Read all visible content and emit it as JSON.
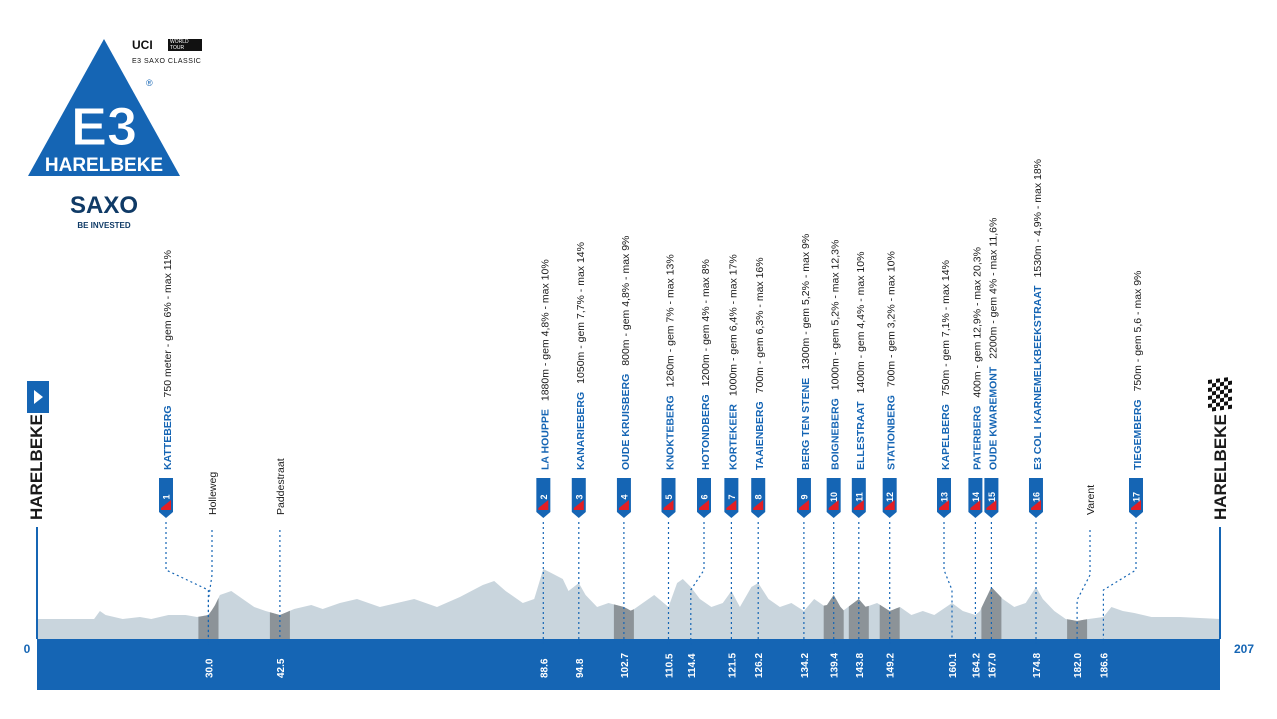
{
  "logo": {
    "mark": "E3",
    "registered": "®",
    "name": "HARELBEKE",
    "sponsor": "SAXO",
    "tagline": "BE INVESTED",
    "blue": "#1565b4"
  },
  "uci": {
    "brand": "UCI",
    "badge": "WORLD TOUR",
    "subtitle": "E3 SAXO CLASSIC"
  },
  "colors": {
    "primary": "#1565b4",
    "terrain": "#c9d5dd",
    "cobbles": "#8c9398",
    "text": "#1a1a1a"
  },
  "chart_data": {
    "type": "area",
    "x_unit": "km",
    "xlim": [
      0,
      207
    ],
    "start": {
      "km_label": "0",
      "town": "HARELBEKE",
      "icon": "start-flag-icon"
    },
    "finish": {
      "km_label": "207",
      "town": "HARELBEKE",
      "icon": "checkered-flag-icon"
    },
    "climbs": [
      {
        "num": "1",
        "name": "KATTEBERG",
        "details": "750 meter  -  gem 6%  -  max 11%",
        "km": 30.0,
        "km_label": "30.0"
      },
      {
        "num": "2",
        "name": "LA HOUPPE",
        "details": "1880m  -  gem 4,8%  -  max 10%",
        "km": 88.6,
        "km_label": "88.6"
      },
      {
        "num": "3",
        "name": "KANARIEBERG",
        "details": "1050m  -  gem 7,7%  -  max 14%",
        "km": 94.8,
        "km_label": "94.8"
      },
      {
        "num": "4",
        "name": "OUDE KRUISBERG",
        "details": "800m  -  gem 4,8%  -  max 9%",
        "km": 102.7,
        "km_label": "102.7"
      },
      {
        "num": "5",
        "name": "KNOKTEBERG",
        "details": "1260m  -  gem 7%  -  max 13%",
        "km": 110.5,
        "km_label": "110.5"
      },
      {
        "num": "6",
        "name": "HOTONDBERG",
        "details": "1200m  -  gem 4%  -  max 8%",
        "km": 114.4,
        "km_label": "114.4"
      },
      {
        "num": "7",
        "name": "KORTEKEER",
        "details": "1000m  -  gem 6,4%  -  max 17%",
        "km": 121.5,
        "km_label": "121.5"
      },
      {
        "num": "8",
        "name": "TAAIENBERG",
        "details": "700m  -  gem 6,3%  -  max 16%",
        "km": 126.2,
        "km_label": "126.2"
      },
      {
        "num": "9",
        "name": "BERG TEN STENE",
        "details": "1300m  -  gem 5,2%  -  max 9%",
        "km": 134.2,
        "km_label": "134.2"
      },
      {
        "num": "10",
        "name": "BOIGNEBERG",
        "details": "1000m  -  gem 5,2%  -  max 12,3%",
        "km": 139.4,
        "km_label": "139.4"
      },
      {
        "num": "11",
        "name": "ELLESTRAAT",
        "details": "1400m  -  gem 4,4%  -  max 10%",
        "km": 143.8,
        "km_label": "143.8"
      },
      {
        "num": "12",
        "name": "STATIONBERG",
        "details": "700m  -  gem 3,2%  -  max 10%",
        "km": 149.2,
        "km_label": "149.2"
      },
      {
        "num": "13",
        "name": "KAPELBERG",
        "details": "750m  -  gem 7,1%  -  max 14%",
        "km": 160.1,
        "km_label": "160.1"
      },
      {
        "num": "14",
        "name": "PATERBERG",
        "details": "400m  -  gem 12,9%  -  max 20,3%",
        "km": 164.2,
        "km_label": "164.2"
      },
      {
        "num": "15",
        "name": "OUDE KWAREMONT",
        "details": "2200m  -  gem 4%  -  max 11,6%",
        "km": 167.0,
        "km_label": "167.0"
      },
      {
        "num": "16",
        "name": "E3 COL I KARNEMELKBEEKSTRAAT",
        "details": "1530m  -  4,9%  -  max 18%",
        "km": 174.8,
        "km_label": "174.8"
      },
      {
        "num": "17",
        "name": "TIEGEMBERG",
        "details": "750m  -  gem 5,6  -  max 9%",
        "km": 186.6,
        "km_label": "186.6"
      }
    ],
    "cobbles": [
      {
        "name": "Holleweg",
        "km": 30.0,
        "km_label": "30.0"
      },
      {
        "name": "Paddestraat",
        "km": 42.5,
        "km_label": "42.5"
      },
      {
        "name": "Varent",
        "km": 182.0,
        "km_label": "182.0"
      }
    ],
    "profile_km": [
      0,
      5,
      10,
      11,
      12,
      15,
      18,
      20,
      23,
      26,
      28,
      30,
      31,
      32,
      34,
      36,
      38,
      40,
      42.5,
      45,
      48,
      50,
      53,
      56,
      60,
      63,
      66,
      70,
      74,
      78,
      80,
      82,
      85,
      87,
      88.6,
      90,
      92,
      93,
      94.8,
      96,
      98,
      100,
      102.7,
      104,
      106,
      108,
      110.5,
      112,
      113,
      114.4,
      116,
      118,
      120,
      121.5,
      123,
      125,
      126.2,
      128,
      130,
      132,
      134.2,
      136,
      138,
      139.4,
      141,
      143.8,
      145,
      147,
      149.2,
      151,
      153,
      155,
      157,
      160.1,
      162,
      164.2,
      165,
      166,
      167,
      169,
      171,
      173,
      174.8,
      176,
      178,
      180,
      182,
      184,
      186.6,
      188,
      190,
      192,
      195,
      200,
      207
    ],
    "profile_alt": [
      10,
      10,
      10,
      14,
      12,
      10,
      11,
      10,
      12,
      12,
      11,
      12,
      16,
      22,
      24,
      20,
      16,
      14,
      12,
      15,
      17,
      15,
      18,
      20,
      16,
      18,
      20,
      16,
      21,
      27,
      29,
      24,
      18,
      20,
      35,
      33,
      30,
      24,
      28,
      22,
      16,
      18,
      16,
      14,
      18,
      22,
      16,
      28,
      30,
      26,
      20,
      16,
      18,
      24,
      16,
      26,
      28,
      20,
      16,
      18,
      14,
      20,
      16,
      22,
      14,
      20,
      16,
      18,
      14,
      16,
      12,
      14,
      12,
      18,
      14,
      12,
      14,
      20,
      26,
      20,
      16,
      18,
      26,
      20,
      14,
      10,
      9,
      10,
      11,
      16,
      14,
      13,
      11,
      11,
      10,
      10
    ]
  }
}
